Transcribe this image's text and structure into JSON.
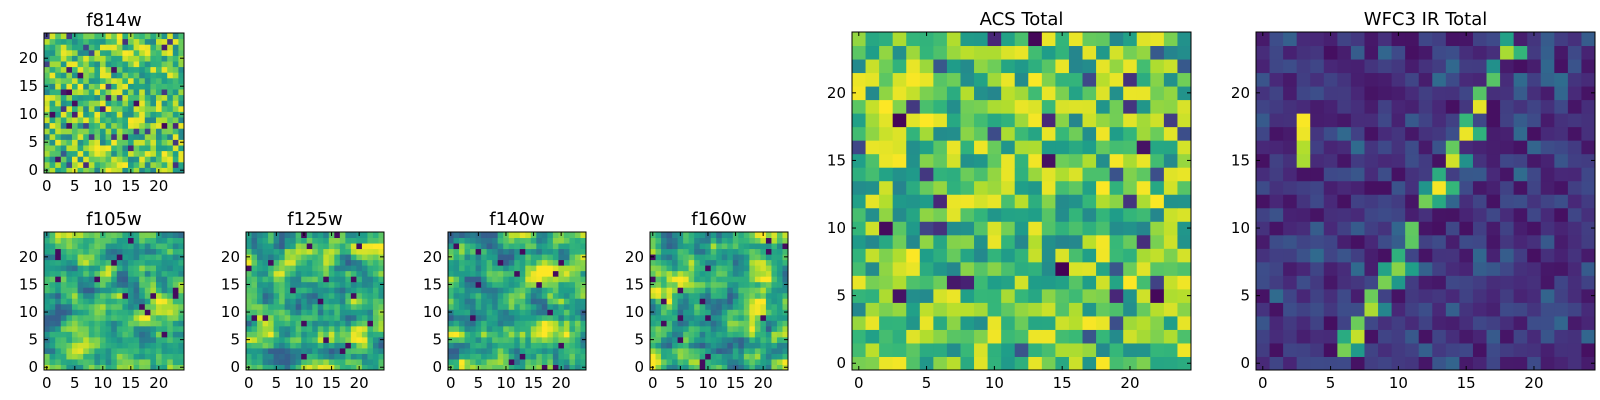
{
  "figure": {
    "colormap": "viridis",
    "tick_color": "#000000",
    "background": "#ffffff"
  },
  "chart_data": [
    {
      "type": "heatmap",
      "title": "f814w",
      "grid_size": 25,
      "seed": 814,
      "pattern": "noise",
      "value_range": [
        0,
        1
      ],
      "xticks": [
        "0",
        "5",
        "10",
        "15",
        "20"
      ],
      "xtick_values": [
        0,
        5,
        10,
        15,
        20
      ],
      "yticks": [
        "0",
        "5",
        "10",
        "15",
        "20"
      ],
      "ytick_values": [
        0,
        5,
        10,
        15,
        20
      ],
      "xlim": [
        -0.5,
        24.5
      ],
      "ylim": [
        -0.5,
        24.5
      ]
    },
    {
      "type": "heatmap",
      "title": "f105w",
      "grid_size": 25,
      "seed": 105,
      "pattern": "smooth_noise",
      "value_range": [
        0,
        1
      ],
      "xticks": [
        "0",
        "5",
        "10",
        "15",
        "20"
      ],
      "xtick_values": [
        0,
        5,
        10,
        15,
        20
      ],
      "yticks": [
        "0",
        "5",
        "10",
        "15",
        "20"
      ],
      "ytick_values": [
        0,
        5,
        10,
        15,
        20
      ],
      "xlim": [
        -0.5,
        24.5
      ],
      "ylim": [
        -0.5,
        24.5
      ]
    },
    {
      "type": "heatmap",
      "title": "f125w",
      "grid_size": 25,
      "seed": 125,
      "pattern": "smooth_noise",
      "value_range": [
        0,
        1
      ],
      "xticks": [
        "0",
        "5",
        "10",
        "15",
        "20"
      ],
      "xtick_values": [
        0,
        5,
        10,
        15,
        20
      ],
      "yticks": [
        "0",
        "5",
        "10",
        "15",
        "20"
      ],
      "ytick_values": [
        0,
        5,
        10,
        15,
        20
      ],
      "xlim": [
        -0.5,
        24.5
      ],
      "ylim": [
        -0.5,
        24.5
      ]
    },
    {
      "type": "heatmap",
      "title": "f140w",
      "grid_size": 25,
      "seed": 140,
      "pattern": "smooth_noise",
      "value_range": [
        0,
        1
      ],
      "xticks": [
        "0",
        "5",
        "10",
        "15",
        "20"
      ],
      "xtick_values": [
        0,
        5,
        10,
        15,
        20
      ],
      "yticks": [
        "0",
        "5",
        "10",
        "15",
        "20"
      ],
      "ytick_values": [
        0,
        5,
        10,
        15,
        20
      ],
      "xlim": [
        -0.5,
        24.5
      ],
      "ylim": [
        -0.5,
        24.5
      ]
    },
    {
      "type": "heatmap",
      "title": "f160w",
      "grid_size": 25,
      "seed": 160,
      "pattern": "smooth_noise",
      "value_range": [
        0,
        1
      ],
      "xticks": [
        "0",
        "5",
        "10",
        "15",
        "20"
      ],
      "xtick_values": [
        0,
        5,
        10,
        15,
        20
      ],
      "yticks": [
        "0",
        "5",
        "10",
        "15",
        "20"
      ],
      "ytick_values": [
        0,
        5,
        10,
        15,
        20
      ],
      "xlim": [
        -0.5,
        24.5
      ],
      "ylim": [
        -0.5,
        24.5
      ]
    },
    {
      "type": "heatmap",
      "title": "ACS Total",
      "grid_size": 25,
      "seed": 999,
      "pattern": "noise",
      "value_range": [
        0,
        1
      ],
      "xticks": [
        "0",
        "5",
        "10",
        "15",
        "20"
      ],
      "xtick_values": [
        0,
        5,
        10,
        15,
        20
      ],
      "yticks": [
        "0",
        "5",
        "10",
        "15",
        "20"
      ],
      "ytick_values": [
        0,
        5,
        10,
        15,
        20
      ],
      "xlim": [
        -0.5,
        24.5
      ],
      "ylim": [
        -0.5,
        24.5
      ]
    },
    {
      "type": "heatmap",
      "title": "WFC3 IR Total",
      "grid_size": 25,
      "seed": 333,
      "pattern": "arc",
      "value_range": [
        0,
        1
      ],
      "arc_points": [
        [
          6,
          1
        ],
        [
          7,
          2
        ],
        [
          8,
          4
        ],
        [
          9,
          6
        ],
        [
          10,
          7
        ],
        [
          11,
          9
        ],
        [
          12,
          12
        ],
        [
          13,
          13
        ],
        [
          14,
          15
        ],
        [
          15,
          17
        ],
        [
          16,
          19
        ],
        [
          17,
          21
        ],
        [
          18,
          23
        ]
      ],
      "arc_extra": [
        [
          3,
          17
        ],
        [
          3,
          16
        ],
        [
          3,
          15
        ],
        [
          3,
          18
        ]
      ],
      "xticks": [
        "0",
        "5",
        "10",
        "15",
        "20"
      ],
      "xtick_values": [
        0,
        5,
        10,
        15,
        20
      ],
      "yticks": [
        "0",
        "5",
        "10",
        "15",
        "20"
      ],
      "ytick_values": [
        0,
        5,
        10,
        15,
        20
      ],
      "xlim": [
        -0.5,
        24.5
      ],
      "ylim": [
        -0.5,
        24.5
      ]
    }
  ]
}
